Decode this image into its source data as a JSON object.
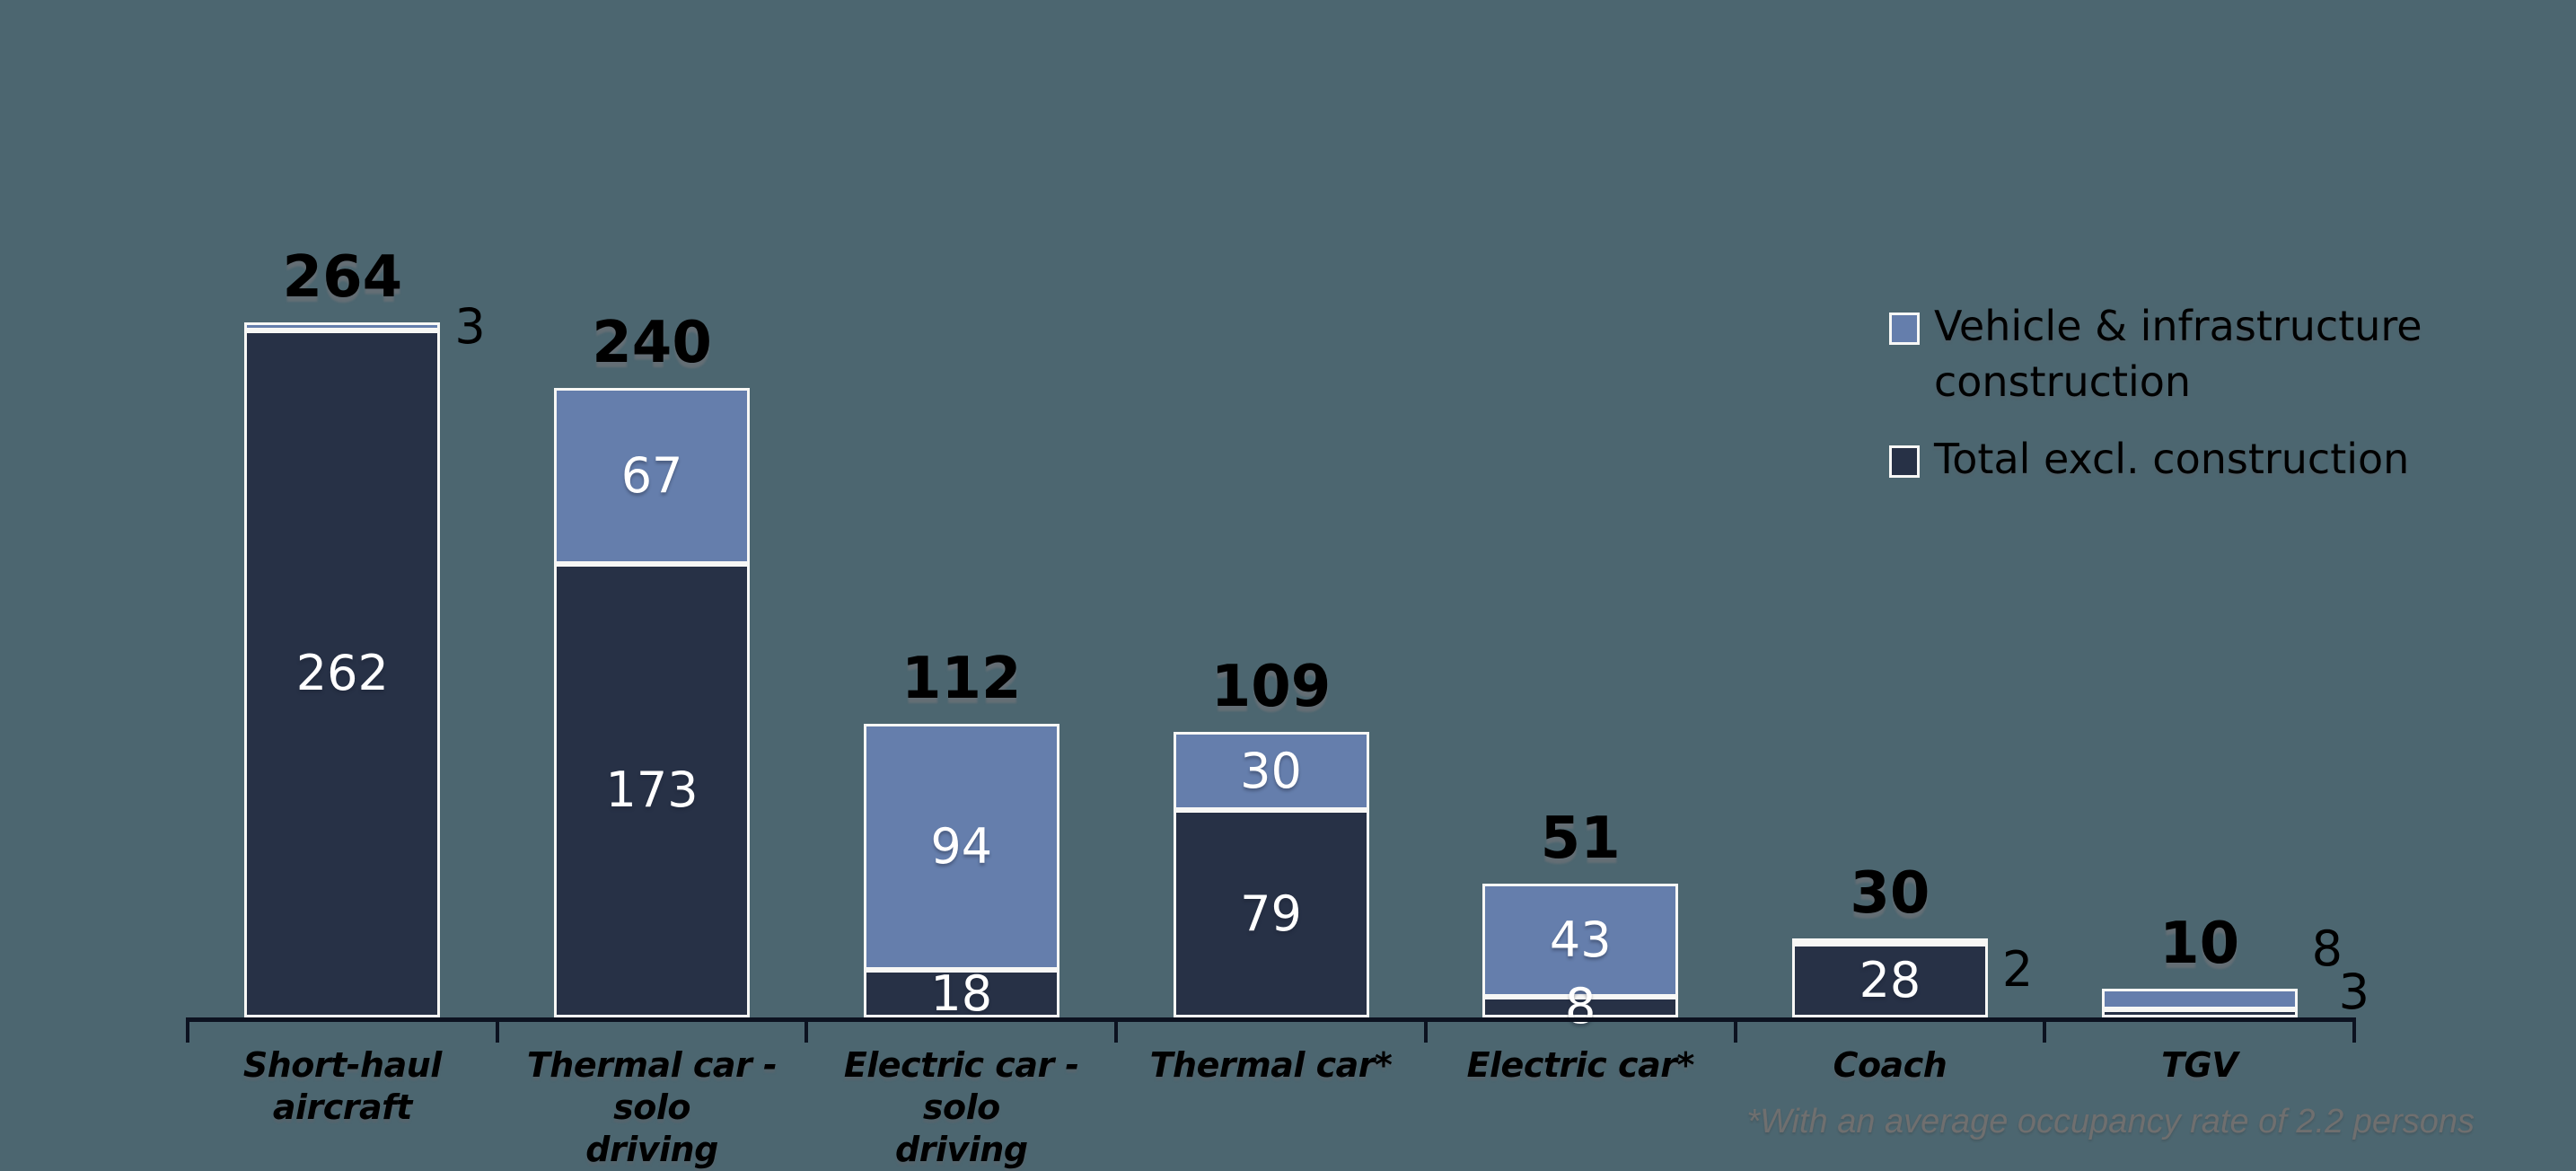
{
  "colors": {
    "background": "#4C6670",
    "series_construction": "#657EAC",
    "series_total_excl": "#273146",
    "segment_border": "#F7F7F5",
    "axis": "#0C1220",
    "label_inside": "#FFFFFF",
    "label_outside": "#000000",
    "footnote": "#6F6F6F"
  },
  "legend": {
    "position": "top-right",
    "items": [
      {
        "label": "Vehicle & infrastructure construction",
        "lines": [
          "Vehicle & infrastructure",
          "construction"
        ],
        "swatch": "#657EAC"
      },
      {
        "label": "Total excl. construction",
        "lines": [
          "Total excl. construction"
        ],
        "swatch": "#273146"
      }
    ]
  },
  "footnote": "*With an average occupancy rate of 2.2 persons",
  "chart_data": {
    "type": "bar",
    "stacked": true,
    "orientation": "vertical",
    "grid": false,
    "value_axis_hidden": true,
    "categories": [
      "Short-haul aircraft",
      "Thermal car - solo driving",
      "Electric car - solo driving",
      "Thermal car*",
      "Electric car*",
      "Coach",
      "TGV"
    ],
    "series": [
      {
        "name": "Total excl. construction",
        "color": "#273146",
        "values": [
          262,
          173,
          18,
          79,
          8,
          28,
          3
        ]
      },
      {
        "name": "Vehicle & infrastructure construction",
        "color": "#657EAC",
        "values": [
          3,
          67,
          94,
          30,
          43,
          2,
          8
        ]
      }
    ],
    "totals": [
      "264",
      "240",
      "112",
      "109",
      "51",
      "30",
      "10"
    ],
    "bars": [
      {
        "category": "Short-haul aircraft",
        "lines": [
          "Short-haul aircraft"
        ],
        "total": "264",
        "dark": {
          "value": 262,
          "label": "262",
          "placement": "inside"
        },
        "light": {
          "value": 3,
          "label": "3",
          "placement": "outside",
          "dx": 0,
          "dy": 0
        }
      },
      {
        "category": "Thermal car - solo driving",
        "lines": [
          "Thermal car - solo",
          "driving"
        ],
        "total": "240",
        "dark": {
          "value": 173,
          "label": "173",
          "placement": "inside"
        },
        "light": {
          "value": 67,
          "label": "67",
          "placement": "inside"
        }
      },
      {
        "category": "Electric car - solo driving",
        "lines": [
          "Electric car - solo",
          "driving"
        ],
        "total": "112",
        "dark": {
          "value": 18,
          "label": "18",
          "placement": "inside"
        },
        "light": {
          "value": 94,
          "label": "94",
          "placement": "inside"
        }
      },
      {
        "category": "Thermal car*",
        "lines": [
          "Thermal car*"
        ],
        "total": "109",
        "dark": {
          "value": 79,
          "label": "79",
          "placement": "inside"
        },
        "light": {
          "value": 30,
          "label": "30",
          "placement": "inside"
        }
      },
      {
        "category": "Electric car*",
        "lines": [
          "Electric car*"
        ],
        "total": "51",
        "dark": {
          "value": 8,
          "label": "8",
          "placement": "inside"
        },
        "light": {
          "value": 43,
          "label": "43",
          "placement": "inside"
        }
      },
      {
        "category": "Coach",
        "lines": [
          "Coach"
        ],
        "total": "30",
        "dark": {
          "value": 28,
          "label": "28",
          "placement": "inside"
        },
        "light": {
          "value": 2,
          "label": "2",
          "placement": "outside",
          "dx": 0,
          "dy": 32
        }
      },
      {
        "category": "TGV",
        "lines": [
          "TGV"
        ],
        "total": "10",
        "dark": {
          "value": 3,
          "label": "3",
          "placement": "outside",
          "dx": 30,
          "dy": -24
        },
        "light": {
          "value": 8,
          "label": "8",
          "placement": "outside",
          "dx": 0,
          "dy": -56
        }
      }
    ]
  }
}
